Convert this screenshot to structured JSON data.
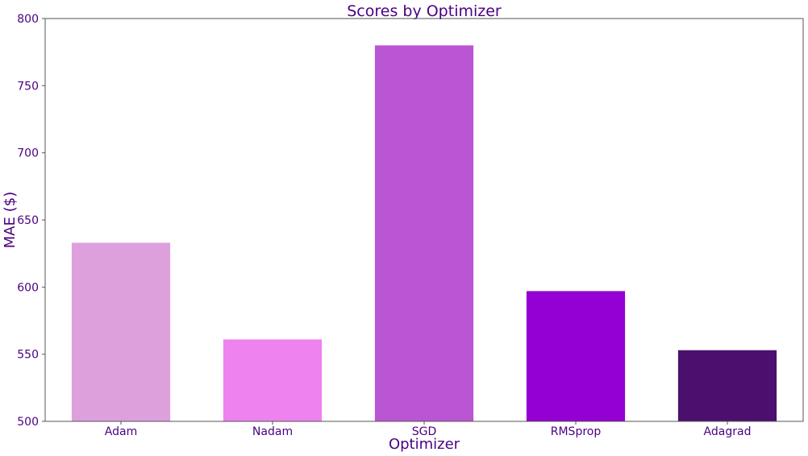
{
  "chart_data": {
    "type": "bar",
    "title": "Scores by Optimizer",
    "xlabel": "Optimizer",
    "ylabel": "MAE ($)",
    "categories": [
      "Adam",
      "Nadam",
      "SGD",
      "RMSprop",
      "Adagrad"
    ],
    "values": [
      633,
      561,
      780,
      597,
      553
    ],
    "ylim": [
      500,
      800
    ],
    "yticks": [
      500,
      550,
      600,
      650,
      700,
      750,
      800
    ],
    "bar_colors": [
      "#DDA0DD",
      "#EE82EE",
      "#BA55D3",
      "#9400D3",
      "#4B0F6E"
    ],
    "text_color": "#4B0082",
    "grid": false,
    "legend": "none"
  }
}
